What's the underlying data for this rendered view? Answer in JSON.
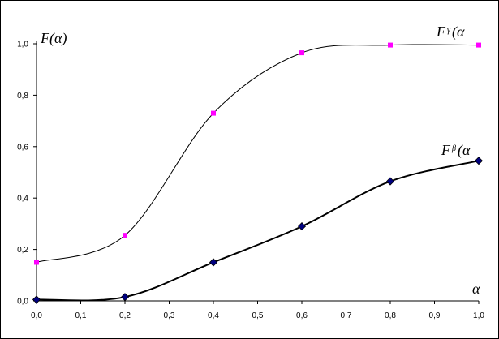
{
  "chart_data": {
    "type": "line",
    "ylabel": "F(α)",
    "xlabel": "α",
    "xlim": [
      0,
      1
    ],
    "ylim": [
      0,
      1
    ],
    "x_ticks": [
      "0,0",
      "0,1",
      "0,2",
      "0,3",
      "0,4",
      "0,5",
      "0,6",
      "0,7",
      "0,8",
      "0,9",
      "1,0"
    ],
    "y_ticks": [
      "0,0",
      "0,2",
      "0,4",
      "0,6",
      "0,8",
      "1,0"
    ],
    "grid": false,
    "series": [
      {
        "name": "Fγ(α",
        "name_main": "F",
        "name_sup": "γ",
        "name_tail": "(α",
        "marker": "square",
        "color": "#ff00ff",
        "line_color": "#000000",
        "x": [
          0.0,
          0.2,
          0.4,
          0.6,
          0.8,
          1.0
        ],
        "y": [
          0.15,
          0.255,
          0.73,
          0.965,
          0.995,
          0.995
        ]
      },
      {
        "name": "Fβ(α",
        "name_main": "F",
        "name_sup": "β",
        "name_tail": "(α",
        "marker": "diamond",
        "color": "#000080",
        "line_color": "#000000",
        "x": [
          0.0,
          0.2,
          0.4,
          0.6,
          0.8,
          1.0
        ],
        "y": [
          0.005,
          0.015,
          0.15,
          0.29,
          0.465,
          0.545
        ]
      }
    ]
  }
}
